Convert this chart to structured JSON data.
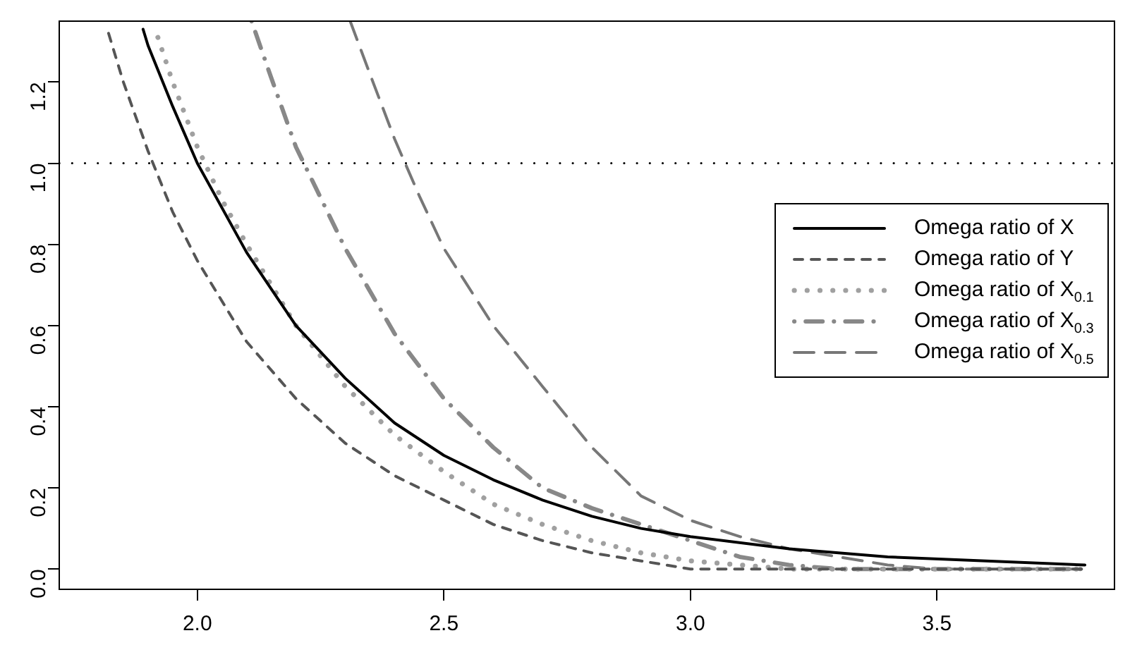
{
  "chart_data": {
    "type": "line",
    "xlim": [
      1.72,
      3.86
    ],
    "ylim": [
      -0.05,
      1.35
    ],
    "xticks": [
      {
        "value": 2,
        "label": "2.0"
      },
      2.5,
      {
        "value": 3,
        "label": "3.0"
      },
      3.5
    ],
    "yticks": [
      {
        "value": 0,
        "label": "0.0"
      },
      0.2,
      0.4,
      0.6,
      0.8,
      {
        "value": 1,
        "label": "1.0"
      },
      1.2
    ],
    "grid": false,
    "legend": "right",
    "marker": "none",
    "ref_lines": [
      {
        "axis": "y",
        "value": 1,
        "color": "#000000",
        "line_style": "dotted"
      }
    ],
    "series": [
      {
        "name": "Omega ratio of X",
        "color": "#000000",
        "line_style": "solid",
        "x": [
          1.89,
          1.9,
          1.95,
          2.0,
          2.1,
          2.2,
          2.3,
          2.4,
          2.5,
          2.6,
          2.7,
          2.8,
          2.9,
          3.0,
          3.2,
          3.4,
          3.6,
          3.8
        ],
        "values": [
          1.33,
          1.29,
          1.14,
          1.0,
          0.78,
          0.6,
          0.47,
          0.36,
          0.28,
          0.22,
          0.17,
          0.13,
          0.1,
          0.08,
          0.05,
          0.03,
          0.02,
          0.01
        ]
      },
      {
        "name": "Omega ratio of Y",
        "color": "#555555",
        "line_style": "dashed",
        "x": [
          1.82,
          1.85,
          1.9,
          1.95,
          2.0,
          2.1,
          2.2,
          2.3,
          2.4,
          2.5,
          2.6,
          2.7,
          2.8,
          2.9,
          3.0,
          3.2,
          3.5,
          3.8
        ],
        "values": [
          1.32,
          1.2,
          1.03,
          0.88,
          0.76,
          0.56,
          0.42,
          0.31,
          0.23,
          0.17,
          0.11,
          0.07,
          0.04,
          0.02,
          0.0,
          0.0,
          0.0,
          0.0
        ]
      },
      {
        "name": "Omega ratio of X$_{0.1}$",
        "color": "#a0a0a0",
        "line_style": "dotted",
        "x": [
          1.92,
          1.95,
          2.0,
          2.05,
          2.1,
          2.2,
          2.3,
          2.4,
          2.5,
          2.6,
          2.7,
          2.8,
          2.9,
          3.0,
          3.1,
          3.2,
          3.5,
          3.8
        ],
        "values": [
          1.31,
          1.2,
          1.04,
          0.91,
          0.8,
          0.6,
          0.45,
          0.33,
          0.24,
          0.16,
          0.11,
          0.07,
          0.04,
          0.02,
          0.01,
          0.0,
          0.0,
          0.0
        ]
      },
      {
        "name": "Omega ratio of X$_{0.3}$",
        "color": "#888888",
        "line_style": "dashdot",
        "x": [
          2.11,
          2.15,
          2.2,
          2.3,
          2.4,
          2.5,
          2.6,
          2.7,
          2.8,
          2.9,
          3.0,
          3.1,
          3.2,
          3.3,
          3.4,
          3.8
        ],
        "values": [
          1.35,
          1.21,
          1.04,
          0.79,
          0.58,
          0.42,
          0.3,
          0.2,
          0.15,
          0.11,
          0.07,
          0.03,
          0.01,
          0.0,
          0.0,
          0.0
        ]
      },
      {
        "name": "Omega ratio of X$_{0.5}$",
        "color": "#777777",
        "line_style": "longdash",
        "x": [
          2.31,
          2.35,
          2.4,
          2.45,
          2.5,
          2.6,
          2.7,
          2.8,
          2.9,
          3.0,
          3.1,
          3.2,
          3.3,
          3.4,
          3.5,
          3.6,
          3.8
        ],
        "values": [
          1.35,
          1.22,
          1.06,
          0.92,
          0.79,
          0.6,
          0.45,
          0.3,
          0.18,
          0.12,
          0.08,
          0.05,
          0.03,
          0.01,
          0.0,
          0.0,
          0.0
        ]
      }
    ]
  }
}
